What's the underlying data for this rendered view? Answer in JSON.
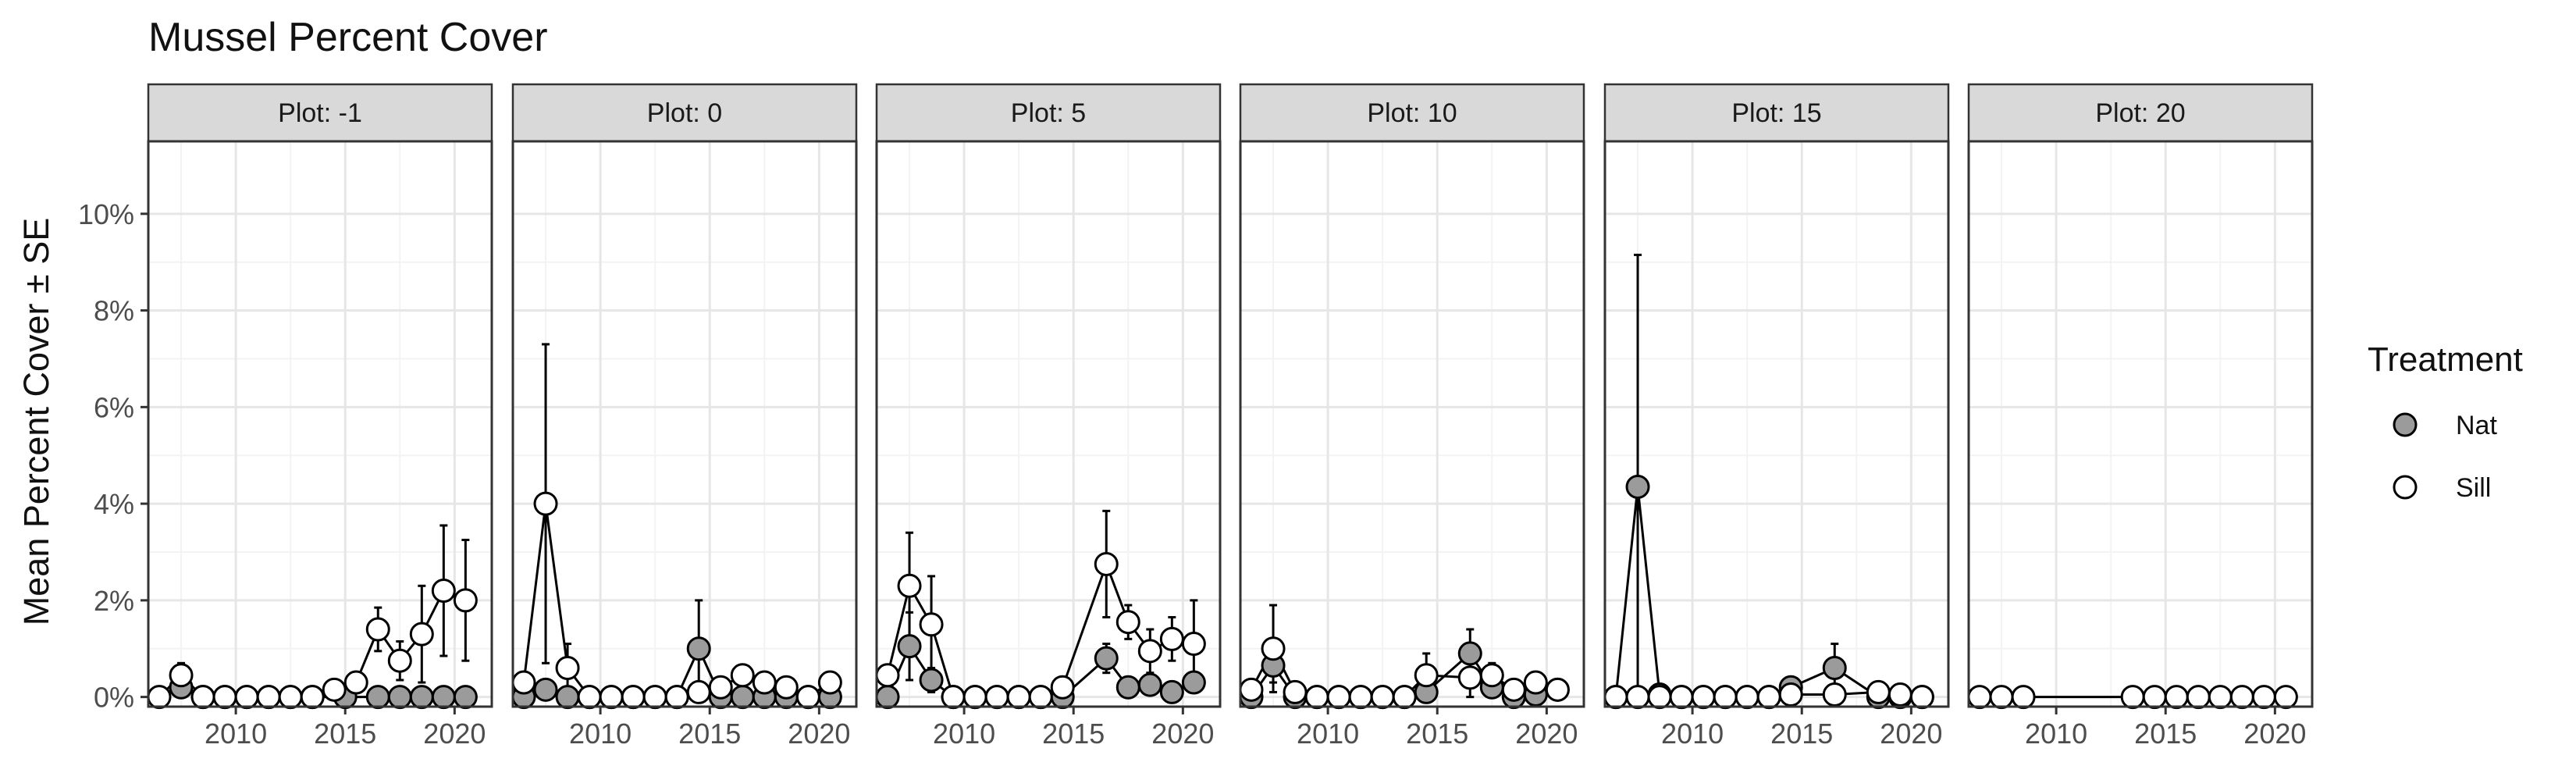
{
  "chart_data": {
    "type": "line",
    "title": "Mussel Percent Cover",
    "ylabel": "Mean Percent Cover ± SE",
    "xlabel": "",
    "x_range": [
      2006,
      2021.7
    ],
    "y_range": [
      -0.2,
      11.5
    ],
    "x_ticks": [
      2010,
      2015,
      2020
    ],
    "x_tick_labels": [
      "2010",
      "2015",
      "2020"
    ],
    "y_ticks": [
      0,
      2,
      4,
      6,
      8,
      10
    ],
    "y_tick_labels": [
      "0%",
      "2%",
      "4%",
      "6%",
      "8%",
      "10%"
    ],
    "grid": true,
    "legend": {
      "title": "Treatment",
      "placement": "right",
      "entries": [
        {
          "label": "Nat",
          "color": "#9b9b9b"
        },
        {
          "label": "Sill",
          "color": "#ffffff"
        }
      ]
    },
    "colors": {
      "Nat": "#9b9b9b",
      "Sill": "#ffffff",
      "strip": "#d9d9d9",
      "grid_major": "#e6e6e6",
      "grid_minor": "#f3f3f3"
    },
    "panels": [
      {
        "label": "Plot: -1",
        "series": [
          {
            "name": "Nat",
            "points": [
              [
                2007.5,
                0.2,
                0.15
              ],
              [
                2008.5,
                0,
                0
              ],
              [
                2009.5,
                0,
                0
              ],
              [
                2010.5,
                0,
                0
              ],
              [
                2011.5,
                0,
                0
              ],
              [
                2012.5,
                0,
                0
              ],
              [
                2013.5,
                0,
                0
              ],
              [
                2015,
                0,
                0
              ],
              [
                2016.5,
                0,
                0
              ],
              [
                2017.5,
                0,
                0
              ],
              [
                2018.5,
                0,
                0
              ],
              [
                2019.5,
                0,
                0
              ],
              [
                2020.5,
                0,
                0
              ]
            ]
          },
          {
            "name": "Sill",
            "points": [
              [
                2006.5,
                0,
                0
              ],
              [
                2007.5,
                0.45,
                0.25
              ],
              [
                2008.5,
                0,
                0
              ],
              [
                2009.5,
                0,
                0
              ],
              [
                2010.5,
                0,
                0
              ],
              [
                2011.5,
                0,
                0
              ],
              [
                2012.5,
                0,
                0
              ],
              [
                2013.5,
                0,
                0
              ],
              [
                2014.5,
                0.15,
                0.05
              ],
              [
                2015.5,
                0.3,
                0.15
              ],
              [
                2016.5,
                1.4,
                0.45
              ],
              [
                2017.5,
                0.75,
                0.4
              ],
              [
                2018.5,
                1.3,
                1.0
              ],
              [
                2019.5,
                2.2,
                1.35
              ],
              [
                2020.5,
                2.0,
                1.25
              ]
            ]
          }
        ]
      },
      {
        "label": "Plot: 0",
        "series": [
          {
            "name": "Nat",
            "points": [
              [
                2006.5,
                0,
                0
              ],
              [
                2007.5,
                0.15,
                0.1
              ],
              [
                2008.5,
                0,
                0
              ],
              [
                2009.5,
                0,
                0
              ],
              [
                2010.5,
                0,
                0
              ],
              [
                2011.5,
                0,
                0
              ],
              [
                2012.5,
                0,
                0
              ],
              [
                2013.5,
                0,
                0
              ],
              [
                2014.5,
                1.0,
                1.0
              ],
              [
                2015.5,
                0,
                0
              ],
              [
                2016.5,
                0,
                0
              ],
              [
                2017.5,
                0,
                0
              ],
              [
                2018.5,
                0,
                0
              ],
              [
                2019.5,
                0,
                0
              ],
              [
                2020.5,
                0,
                0
              ]
            ]
          },
          {
            "name": "Sill",
            "points": [
              [
                2006.5,
                0.3,
                0
              ],
              [
                2007.5,
                4.0,
                3.3
              ],
              [
                2008.5,
                0.6,
                0.5
              ],
              [
                2009.5,
                0,
                0
              ],
              [
                2010.5,
                0,
                0
              ],
              [
                2011.5,
                0,
                0
              ],
              [
                2012.5,
                0,
                0
              ],
              [
                2013.5,
                0,
                0
              ],
              [
                2014.5,
                0.1,
                0.05
              ],
              [
                2015.5,
                0.2,
                0.1
              ],
              [
                2016.5,
                0.45,
                0.2
              ],
              [
                2017.5,
                0.3,
                0.15
              ],
              [
                2018.5,
                0.2,
                0.15
              ],
              [
                2019.5,
                0,
                0
              ],
              [
                2020.5,
                0.3,
                0.15
              ]
            ]
          }
        ]
      },
      {
        "label": "Plot: 5",
        "series": [
          {
            "name": "Nat",
            "points": [
              [
                2006.5,
                0,
                0
              ],
              [
                2007.5,
                1.05,
                0.7
              ],
              [
                2008.5,
                0.35,
                0.25
              ],
              [
                2009.5,
                0,
                0
              ],
              [
                2010.5,
                0,
                0
              ],
              [
                2011.5,
                0,
                0
              ],
              [
                2012.5,
                0,
                0
              ],
              [
                2013.5,
                0,
                0
              ],
              [
                2014.5,
                0,
                0
              ],
              [
                2016.5,
                0.8,
                0.3
              ],
              [
                2017.5,
                0.2,
                0.15
              ],
              [
                2018.5,
                0.25,
                0.15
              ],
              [
                2019.5,
                0.1,
                0.1
              ],
              [
                2020.5,
                0.3,
                0.2
              ]
            ]
          },
          {
            "name": "Sill",
            "points": [
              [
                2006.5,
                0.45,
                0.2
              ],
              [
                2007.5,
                2.3,
                1.1
              ],
              [
                2008.5,
                1.5,
                1.0
              ],
              [
                2009.5,
                0,
                0
              ],
              [
                2010.5,
                0,
                0
              ],
              [
                2011.5,
                0,
                0
              ],
              [
                2012.5,
                0,
                0
              ],
              [
                2013.5,
                0,
                0
              ],
              [
                2014.5,
                0.2,
                0.1
              ],
              [
                2016.5,
                2.75,
                1.1
              ],
              [
                2017.5,
                1.55,
                0.35
              ],
              [
                2018.5,
                0.95,
                0.45
              ],
              [
                2019.5,
                1.2,
                0.45
              ],
              [
                2020.5,
                1.1,
                0.9
              ]
            ]
          }
        ]
      },
      {
        "label": "Plot: 10",
        "series": [
          {
            "name": "Nat",
            "points": [
              [
                2006.5,
                0,
                0
              ],
              [
                2007.5,
                0.65,
                0.35
              ],
              [
                2008.5,
                0,
                0
              ],
              [
                2009.5,
                0,
                0
              ],
              [
                2010.5,
                0,
                0
              ],
              [
                2011.5,
                0,
                0
              ],
              [
                2012.5,
                0,
                0
              ],
              [
                2013.5,
                0,
                0
              ],
              [
                2014.5,
                0.1,
                0.05
              ],
              [
                2016.5,
                0.9,
                0.5
              ],
              [
                2017.5,
                0.2,
                0.15
              ],
              [
                2018.5,
                0,
                0
              ],
              [
                2019.5,
                0.05,
                0.05
              ],
              [
                2020.5,
                0.15,
                0
              ]
            ]
          },
          {
            "name": "Sill",
            "points": [
              [
                2006.5,
                0.15,
                0.1
              ],
              [
                2007.5,
                1.0,
                0.9
              ],
              [
                2008.5,
                0.1,
                0.05
              ],
              [
                2009.5,
                0,
                0
              ],
              [
                2010.5,
                0,
                0
              ],
              [
                2011.5,
                0,
                0
              ],
              [
                2012.5,
                0,
                0
              ],
              [
                2013.5,
                0,
                0
              ],
              [
                2014.5,
                0.45,
                0.45
              ],
              [
                2016.5,
                0.4,
                0.4
              ],
              [
                2017.5,
                0.45,
                0.25
              ],
              [
                2018.5,
                0.15,
                0.1
              ],
              [
                2019.5,
                0.3,
                0.15
              ],
              [
                2020.5,
                0.15,
                0.05
              ]
            ]
          }
        ]
      },
      {
        "label": "Plot: 15",
        "series": [
          {
            "name": "Nat",
            "points": [
              [
                2006.5,
                0,
                0
              ],
              [
                2007.5,
                4.35,
                4.8
              ],
              [
                2008.5,
                0.05,
                0.05
              ],
              [
                2009.5,
                0,
                0
              ],
              [
                2010.5,
                0,
                0
              ],
              [
                2011.5,
                0,
                0
              ],
              [
                2012.5,
                0,
                0
              ],
              [
                2013.5,
                0,
                0
              ],
              [
                2014.5,
                0.2,
                0.15
              ],
              [
                2016.5,
                0.6,
                0.5
              ],
              [
                2018.5,
                0,
                0
              ],
              [
                2019.5,
                0,
                0
              ],
              [
                2020.5,
                0,
                0
              ]
            ]
          },
          {
            "name": "Sill",
            "points": [
              [
                2006.5,
                0,
                0
              ],
              [
                2007.5,
                0,
                0
              ],
              [
                2008.5,
                0,
                0
              ],
              [
                2009.5,
                0,
                0
              ],
              [
                2010.5,
                0,
                0
              ],
              [
                2011.5,
                0,
                0
              ],
              [
                2012.5,
                0,
                0
              ],
              [
                2013.5,
                0,
                0
              ],
              [
                2014.5,
                0.05,
                0.05
              ],
              [
                2016.5,
                0.05,
                0
              ],
              [
                2018.5,
                0.1,
                0.05
              ],
              [
                2019.5,
                0.05,
                0
              ],
              [
                2020.5,
                0,
                0
              ]
            ]
          }
        ]
      },
      {
        "label": "Plot: 20",
        "series": [
          {
            "name": "Nat",
            "points": []
          },
          {
            "name": "Sill",
            "points": [
              [
                2006.5,
                0,
                0
              ],
              [
                2007.5,
                0,
                0
              ],
              [
                2008.5,
                0,
                0
              ],
              [
                2013.5,
                0,
                0
              ],
              [
                2014.5,
                0,
                0
              ],
              [
                2015.5,
                0,
                0
              ],
              [
                2016.5,
                0,
                0
              ],
              [
                2017.5,
                0,
                0
              ],
              [
                2018.5,
                0,
                0
              ],
              [
                2019.5,
                0,
                0
              ],
              [
                2020.5,
                0,
                0
              ]
            ]
          }
        ]
      }
    ]
  }
}
